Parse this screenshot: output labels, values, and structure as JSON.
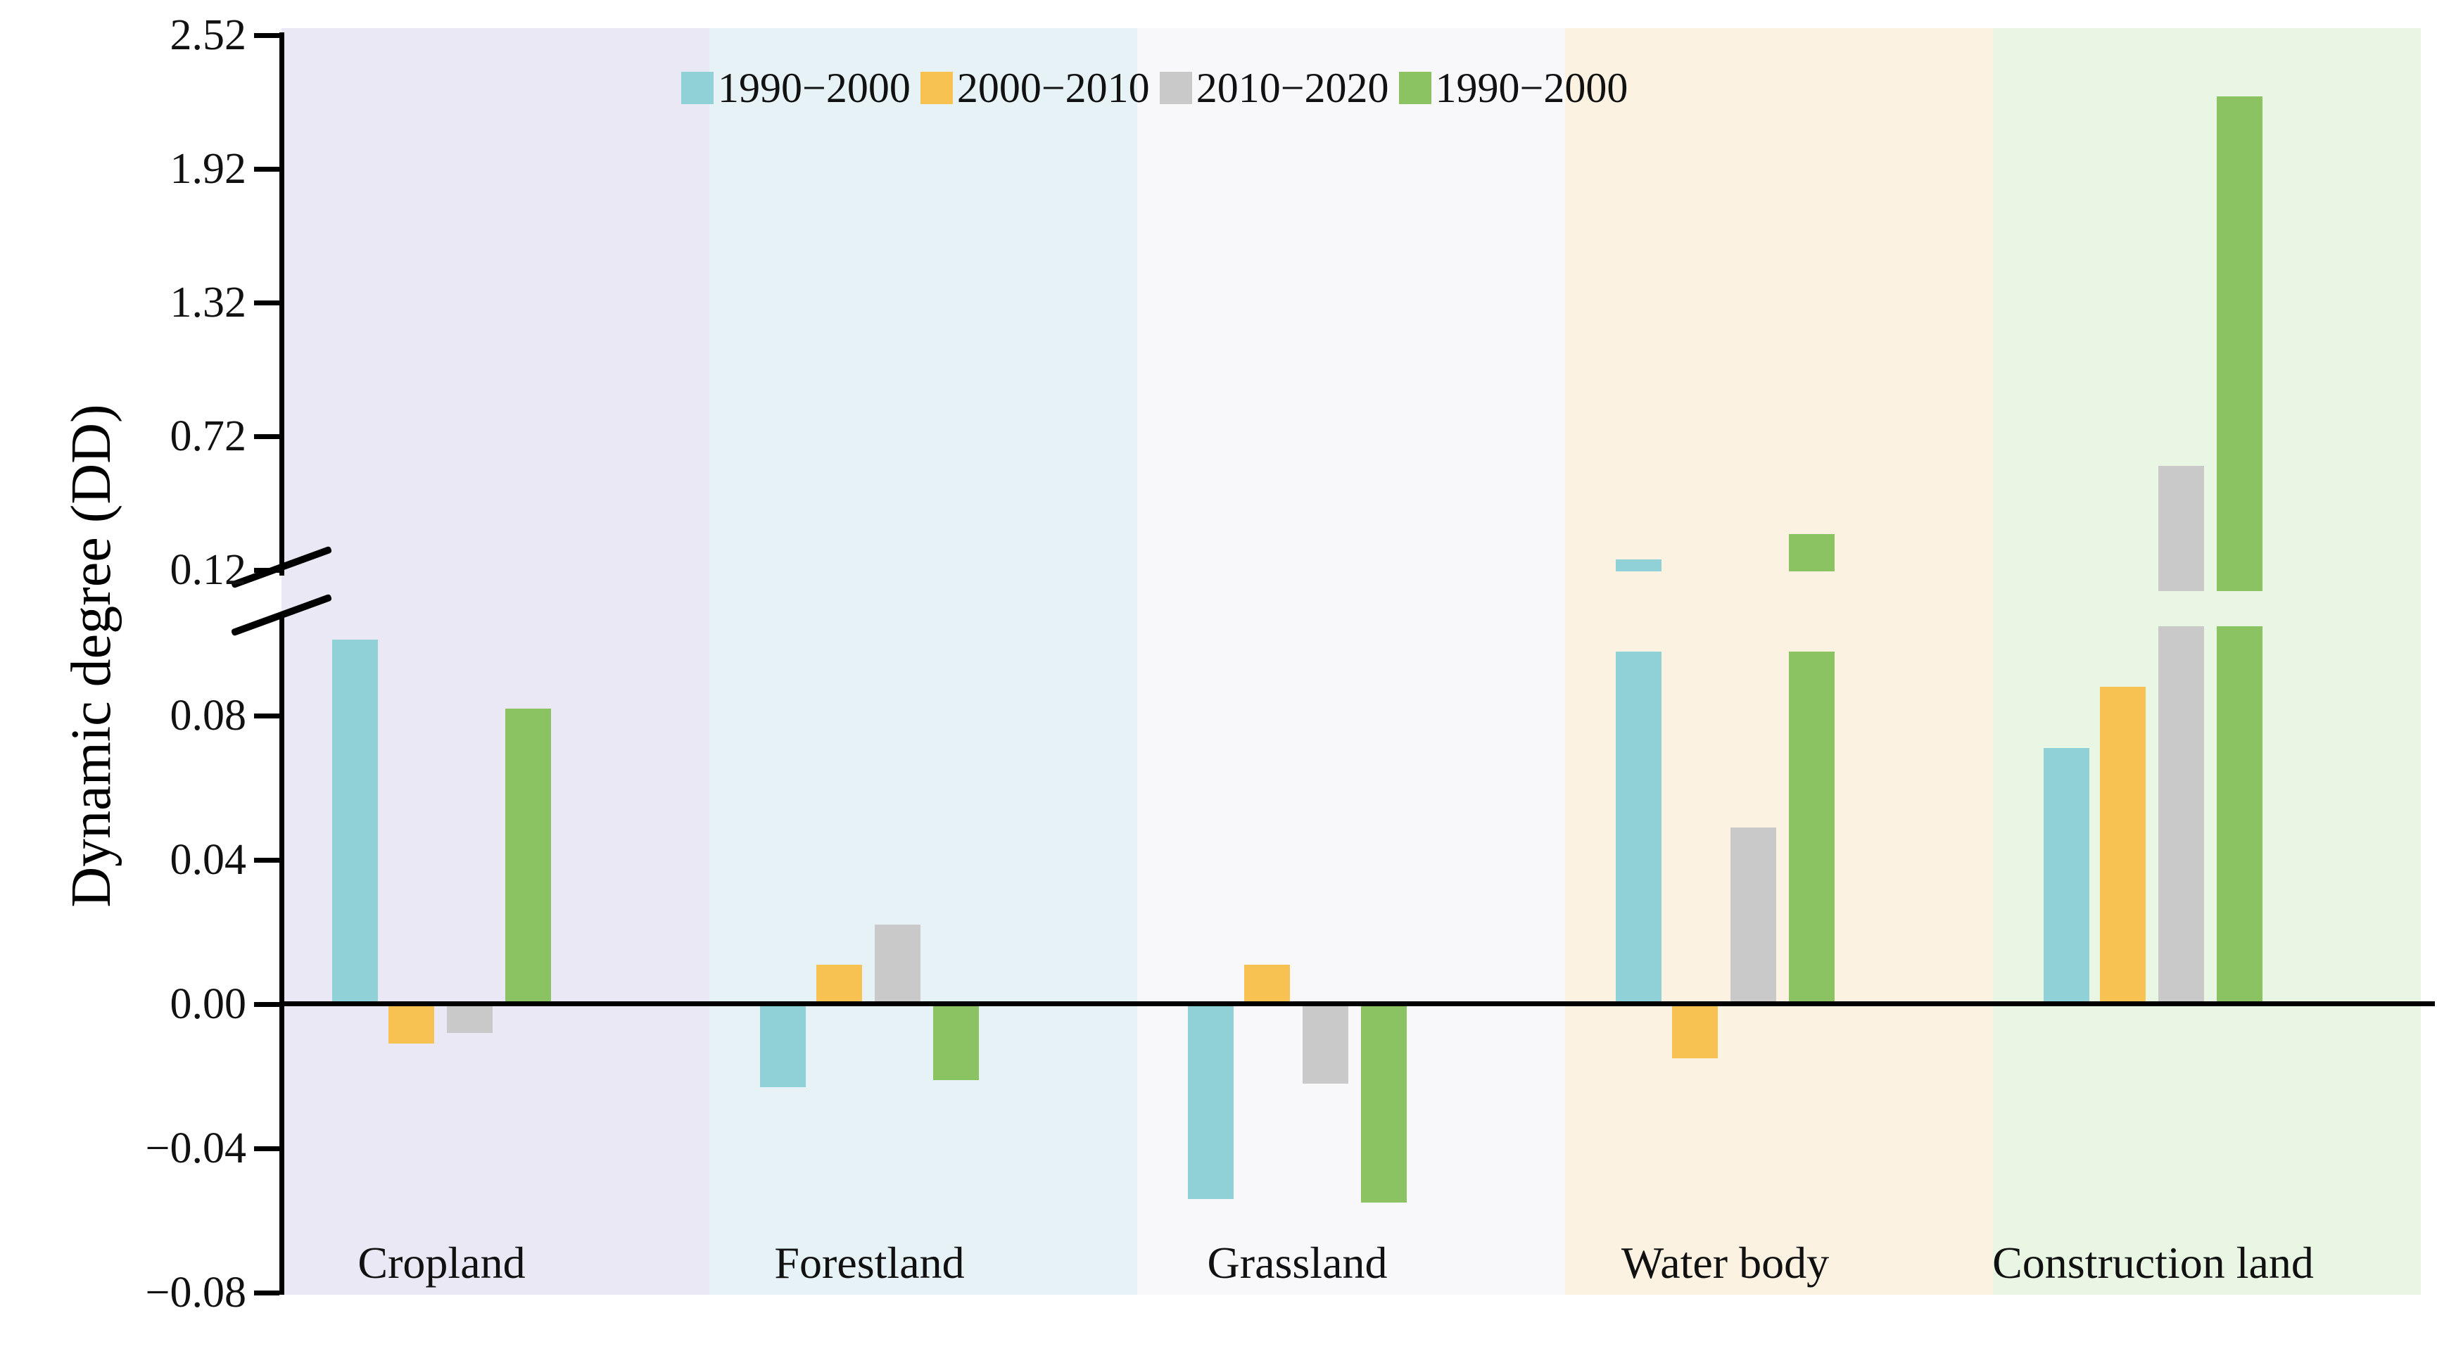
{
  "chart_data": {
    "type": "bar",
    "title": "",
    "ylabel": "Dynamic degree (DD)",
    "categories": [
      "Cropland",
      "Forestland",
      "Grassland",
      "Water body",
      "Construction land"
    ],
    "series": [
      {
        "name": "1990−2000",
        "color": "#8FD1D6",
        "values": [
          0.101,
          -0.023,
          -0.054,
          0.167,
          0.071
        ]
      },
      {
        "name": "2000−2010",
        "color": "#F7C251",
        "values": [
          -0.011,
          0.011,
          0.011,
          -0.015,
          0.088
        ]
      },
      {
        "name": "2010−2020",
        "color": "#C9C9C9",
        "values": [
          -0.008,
          0.022,
          -0.022,
          0.049,
          0.587
        ]
      },
      {
        "name": "1990−2000",
        "color": "#8BC262",
        "values": [
          0.082,
          -0.021,
          -0.055,
          0.281,
          2.245
        ]
      }
    ],
    "y_axis": {
      "broken": true,
      "lower_segment": {
        "ticks": [
          0.08,
          0.04,
          0.0,
          -0.04,
          -0.08
        ],
        "tick_labels": [
          "0.08",
          "0.04",
          "0.00",
          "−0.04",
          "−0.08"
        ],
        "range": [
          -0.08,
          0.105
        ]
      },
      "upper_segment": {
        "ticks": [
          0.12,
          0.72,
          1.32,
          1.92,
          2.52
        ],
        "tick_labels": [
          "0.12",
          "0.72",
          "1.32",
          "1.92",
          "2.52"
        ],
        "range": [
          0.12,
          2.52
        ]
      }
    },
    "category_band_colors": [
      "#E9E8F4",
      "#E6F2F5",
      "#F8F8FA",
      "#FBF2E1",
      "#E8F6E3"
    ],
    "legend_position": "top",
    "grid": false
  }
}
